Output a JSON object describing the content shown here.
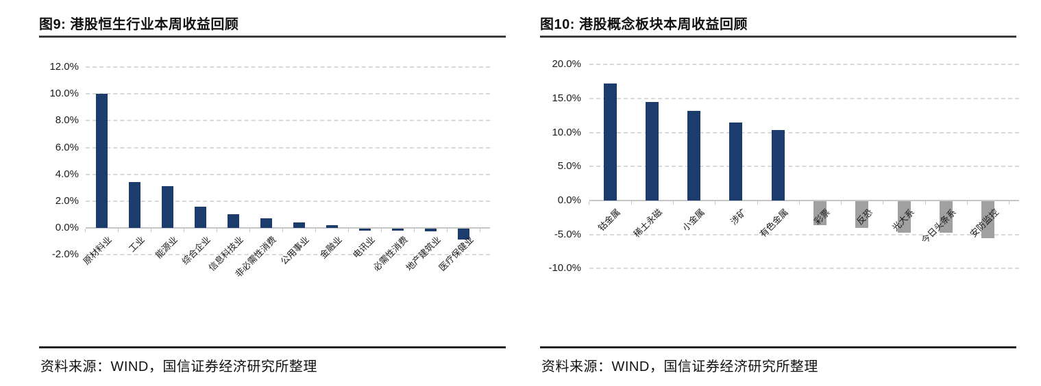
{
  "source_note": "资料来源：WIND，国信证券经济研究所整理",
  "chart_data": [
    {
      "type": "bar",
      "title": "图9: 港股恒生行业本周收益回顾",
      "categories": [
        "原材料业",
        "工业",
        "能源业",
        "综合企业",
        "信息科技业",
        "非必需性消费",
        "公用事业",
        "金融业",
        "电讯业",
        "必需性消费",
        "地产建筑业",
        "医疗保健业"
      ],
      "values": [
        10.0,
        3.4,
        3.1,
        1.6,
        1.0,
        0.7,
        0.4,
        0.2,
        -0.15,
        -0.15,
        -0.2,
        -0.8
      ],
      "ylim": [
        -2,
        12
      ],
      "ytick_step": 2,
      "yticks": [
        "12.0%",
        "10.0%",
        "8.0%",
        "6.0%",
        "4.0%",
        "2.0%",
        "0.0%",
        "-2.0%"
      ],
      "ytick_values": [
        12,
        10,
        8,
        6,
        4,
        2,
        0,
        -2
      ],
      "grid": "dashed-horizontal",
      "positive_color": "#1B3C6C",
      "negative_color": "#1B3C6C",
      "source": "资料来源：WIND，国信证券经济研究所整理"
    },
    {
      "type": "bar",
      "title": "图10: 港股概念板块本周收益回顾",
      "categories": [
        "钴金属",
        "稀土永磁",
        "小金属",
        "涉矿",
        "有色金属",
        "彩票",
        "反恐",
        "光大系",
        "今日头条系",
        "安防监控"
      ],
      "values": [
        17.2,
        14.5,
        13.2,
        11.5,
        10.4,
        -3.5,
        -3.9,
        -4.6,
        -4.6,
        -5.4
      ],
      "ylim": [
        -10,
        20
      ],
      "ytick_step": 5,
      "yticks": [
        "20.0%",
        "15.0%",
        "10.0%",
        "5.0%",
        "0.0%",
        "-5.0%",
        "-10.0%"
      ],
      "ytick_values": [
        20,
        15,
        10,
        5,
        0,
        -5,
        -10
      ],
      "grid": "dashed-horizontal",
      "positive_color": "#1B3C6C",
      "negative_color": "#A0A0A0",
      "source": "资料来源：WIND，国信证券经济研究所整理"
    }
  ]
}
